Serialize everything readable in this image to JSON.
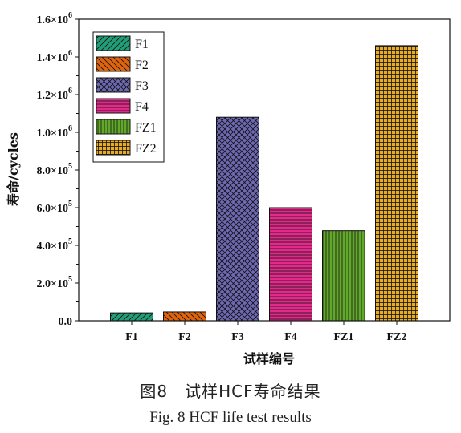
{
  "chart_data": {
    "type": "bar",
    "categories": [
      "F1",
      "F2",
      "F3",
      "F4",
      "FZ1",
      "FZ2"
    ],
    "values": [
      42000,
      47000,
      1080000,
      600000,
      478000,
      1460000
    ],
    "ylabel": "寿命/cycles",
    "xlabel": "试样编号",
    "ylim": [
      0,
      1600000
    ],
    "yticks": [
      {
        "value": 0,
        "label": "0.0"
      },
      {
        "value": 200000,
        "label": "2.0×10",
        "exp": "5"
      },
      {
        "value": 400000,
        "label": "4.0×10",
        "exp": "5"
      },
      {
        "value": 600000,
        "label": "6.0×10",
        "exp": "5"
      },
      {
        "value": 800000,
        "label": "8.0×10",
        "exp": "5"
      },
      {
        "value": 1000000,
        "label": "1.0×10",
        "exp": "6"
      },
      {
        "value": 1200000,
        "label": "1.2×10",
        "exp": "6"
      },
      {
        "value": 1400000,
        "label": "1.4×10",
        "exp": "6"
      },
      {
        "value": 1600000,
        "label": "1.6×10",
        "exp": "6"
      }
    ],
    "legend": {
      "placement": "top-left",
      "entries": [
        "F1",
        "F2",
        "F3",
        "F4",
        "FZ1",
        "FZ2"
      ]
    },
    "colors": [
      "#1f9e77",
      "#e0640c",
      "#6e69b3",
      "#e22a8a",
      "#62a82a",
      "#e8ac24"
    ],
    "hatches": [
      "diag-up",
      "diag-down",
      "cross-diag",
      "horizontal",
      "vertical",
      "grid"
    ],
    "grid": false
  },
  "captions": {
    "chinese": "图8　试样HCF寿命结果",
    "english": "Fig. 8 HCF life test results"
  }
}
